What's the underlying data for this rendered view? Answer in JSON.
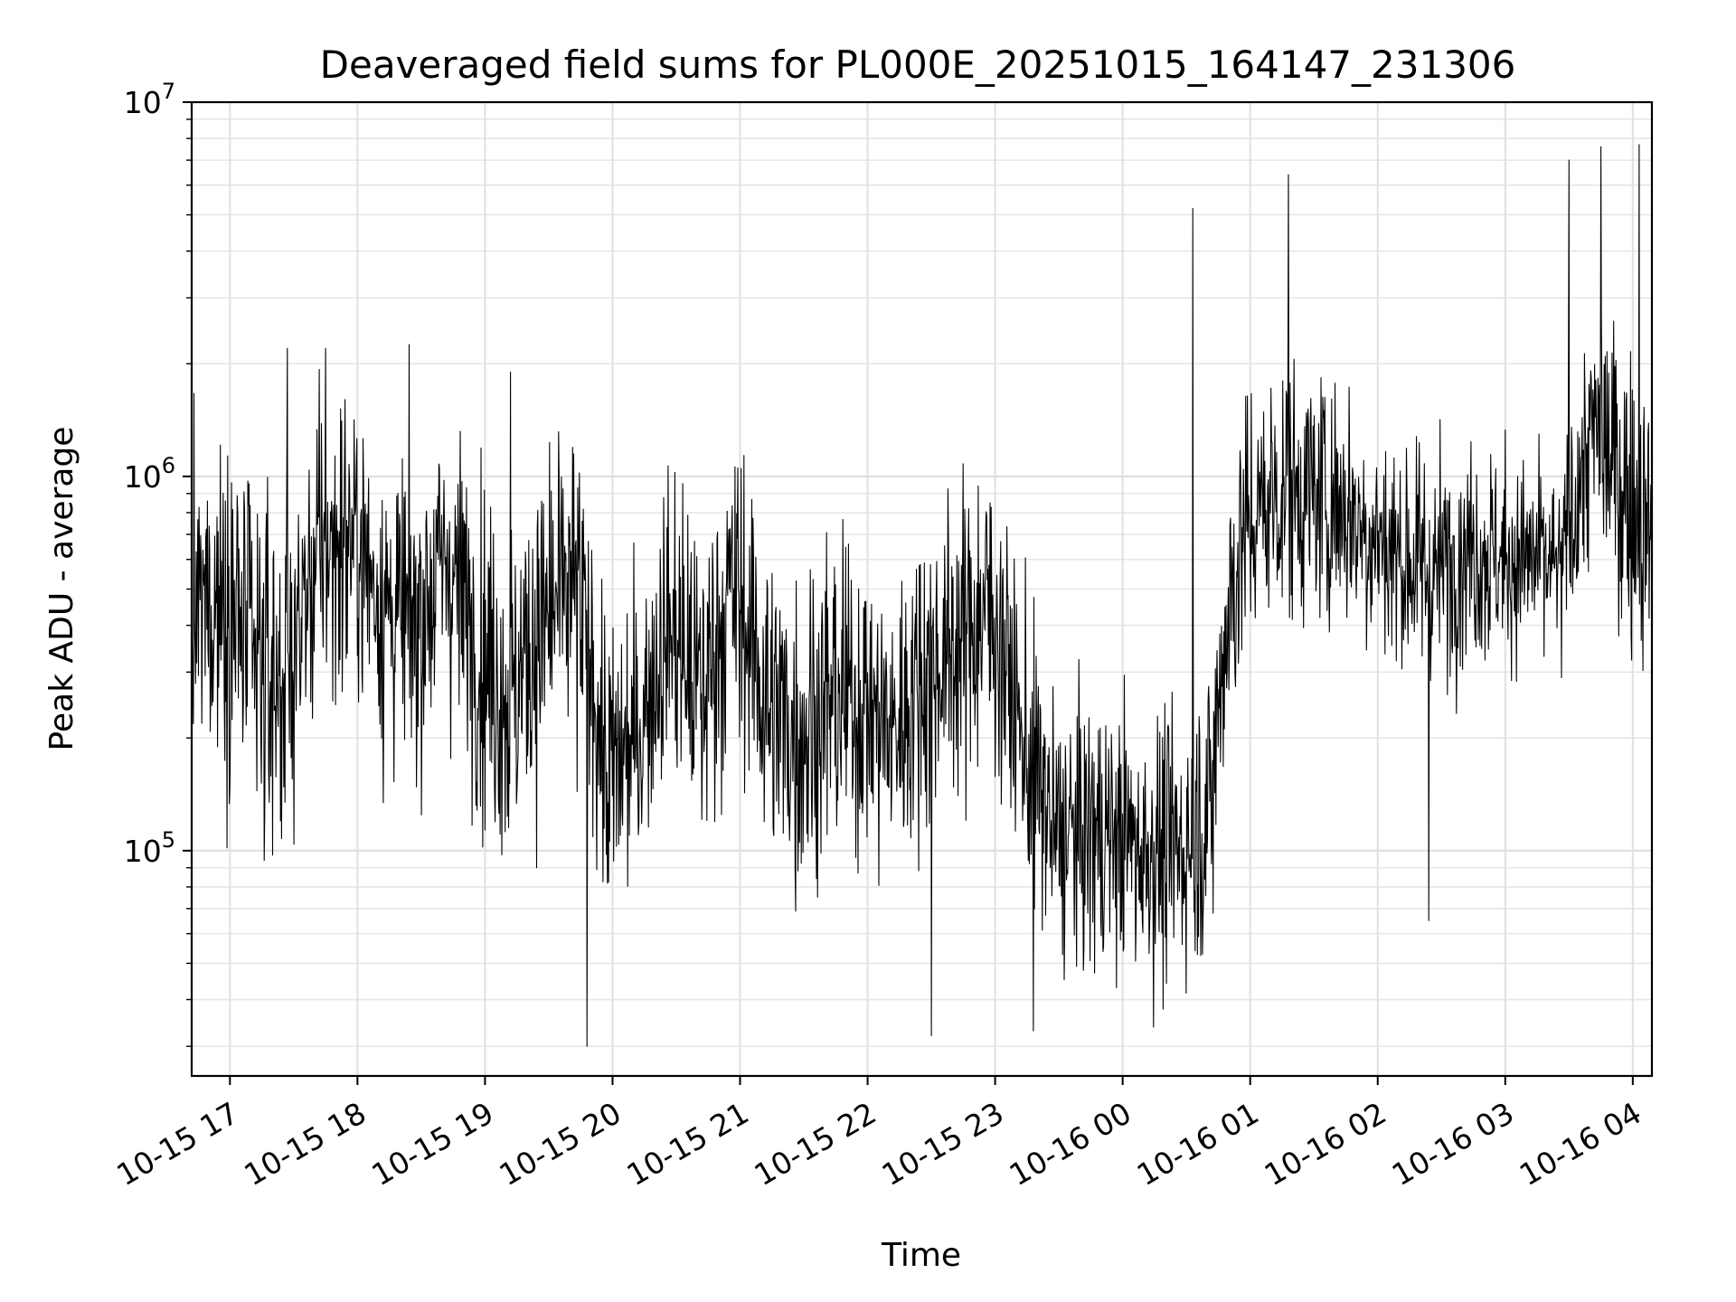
{
  "chart_data": {
    "type": "line",
    "title": "Deaveraged field sums for PL000E_20251015_164147_231306",
    "xlabel": "Time",
    "ylabel": "Peak ADU - average",
    "yscale": "log",
    "ylim": [
      25000,
      10000000
    ],
    "xlim_hours": [
      16.7,
      28.15
    ],
    "grid": true,
    "line_color": "#000000",
    "x_ticks": [
      {
        "value": 17,
        "label": "10-15 17"
      },
      {
        "value": 18,
        "label": "10-15 18"
      },
      {
        "value": 19,
        "label": "10-15 19"
      },
      {
        "value": 20,
        "label": "10-15 20"
      },
      {
        "value": 21,
        "label": "10-15 21"
      },
      {
        "value": 22,
        "label": "10-15 22"
      },
      {
        "value": 23,
        "label": "10-15 23"
      },
      {
        "value": 24,
        "label": "10-16 00"
      },
      {
        "value": 25,
        "label": "10-16 01"
      },
      {
        "value": 26,
        "label": "10-16 02"
      },
      {
        "value": 27,
        "label": "10-16 03"
      },
      {
        "value": 28,
        "label": "10-16 04"
      }
    ],
    "y_ticks": [
      {
        "value": 100000,
        "base": "10",
        "exp": "5"
      },
      {
        "value": 1000000,
        "base": "10",
        "exp": "6"
      },
      {
        "value": 10000000,
        "base": "10",
        "exp": "7"
      }
    ],
    "series": [
      {
        "name": "Peak ADU - average",
        "x_hours": [
          16.7,
          16.95,
          17.2,
          17.45,
          17.7,
          17.95,
          18.2,
          18.45,
          18.7,
          18.95,
          19.2,
          19.45,
          19.7,
          19.95,
          20.2,
          20.45,
          20.7,
          20.95,
          21.2,
          21.45,
          21.7,
          21.95,
          22.2,
          22.45,
          22.7,
          22.95,
          23.2,
          23.45,
          23.7,
          23.95,
          24.2,
          24.45,
          24.7,
          24.95,
          25.2,
          25.45,
          25.7,
          25.95,
          26.2,
          26.45,
          26.7,
          26.95,
          27.2,
          27.45,
          27.7,
          27.95,
          28.15
        ],
        "median": [
          400000,
          500000,
          300000,
          280000,
          600000,
          700000,
          450000,
          400000,
          600000,
          350000,
          250000,
          400000,
          500000,
          150000,
          200000,
          400000,
          250000,
          500000,
          250000,
          200000,
          250000,
          250000,
          200000,
          300000,
          350000,
          450000,
          200000,
          110000,
          110000,
          110000,
          100000,
          100000,
          130000,
          700000,
          900000,
          900000,
          850000,
          700000,
          600000,
          550000,
          650000,
          600000,
          600000,
          550000,
          1300000,
          900000,
          700000
        ],
        "spread_decades": [
          0.55,
          0.55,
          0.6,
          0.55,
          0.5,
          0.5,
          0.5,
          0.55,
          0.5,
          0.55,
          0.6,
          0.55,
          0.55,
          0.5,
          0.5,
          0.5,
          0.55,
          0.55,
          0.55,
          0.55,
          0.55,
          0.5,
          0.5,
          0.5,
          0.5,
          0.5,
          0.5,
          0.45,
          0.45,
          0.45,
          0.45,
          0.45,
          0.5,
          0.45,
          0.45,
          0.45,
          0.45,
          0.4,
          0.4,
          0.4,
          0.4,
          0.35,
          0.35,
          0.35,
          0.45,
          0.5,
          0.45
        ],
        "notable_points": [
          {
            "x_hours": 17.45,
            "y": 2200000
          },
          {
            "x_hours": 17.75,
            "y": 2200000
          },
          {
            "x_hours": 19.2,
            "y": 1900000
          },
          {
            "x_hours": 19.8,
            "y": 30000
          },
          {
            "x_hours": 22.5,
            "y": 32000
          },
          {
            "x_hours": 23.3,
            "y": 33000
          },
          {
            "x_hours": 24.55,
            "y": 5200000
          },
          {
            "x_hours": 25.3,
            "y": 6400000
          },
          {
            "x_hours": 26.4,
            "y": 65000
          },
          {
            "x_hours": 27.5,
            "y": 7000000
          },
          {
            "x_hours": 27.75,
            "y": 7600000
          },
          {
            "x_hours": 28.05,
            "y": 7700000
          }
        ]
      }
    ]
  }
}
